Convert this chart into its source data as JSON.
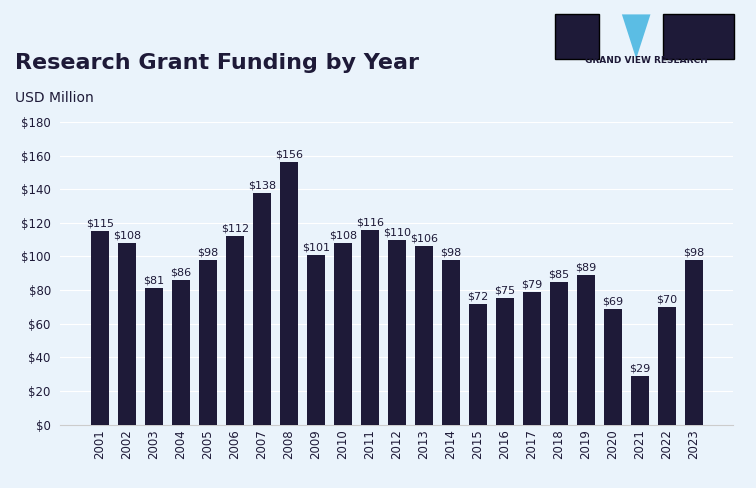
{
  "title": "Research Grant Funding by Year",
  "subtitle": "USD Million",
  "years": [
    2001,
    2002,
    2003,
    2004,
    2005,
    2006,
    2007,
    2008,
    2009,
    2010,
    2011,
    2012,
    2013,
    2014,
    2015,
    2016,
    2017,
    2018,
    2019,
    2020,
    2021,
    2022,
    2023
  ],
  "values": [
    115,
    108,
    81,
    86,
    98,
    112,
    138,
    156,
    101,
    108,
    116,
    110,
    106,
    98,
    72,
    75,
    79,
    85,
    89,
    69,
    29,
    70,
    98
  ],
  "bar_color": "#1e1a38",
  "background_color": "#eaf3fb",
  "plot_background_color": "#eaf3fb",
  "title_color": "#1e1a38",
  "subtitle_color": "#1e1a38",
  "tick_color": "#1e1a38",
  "label_color": "#1e1a38",
  "ylim": [
    0,
    180
  ],
  "yticks": [
    0,
    20,
    40,
    60,
    80,
    100,
    120,
    140,
    160,
    180
  ],
  "title_fontsize": 16,
  "subtitle_fontsize": 10,
  "bar_label_fontsize": 8,
  "tick_fontsize": 8.5,
  "header_color": "#b8d9f0"
}
